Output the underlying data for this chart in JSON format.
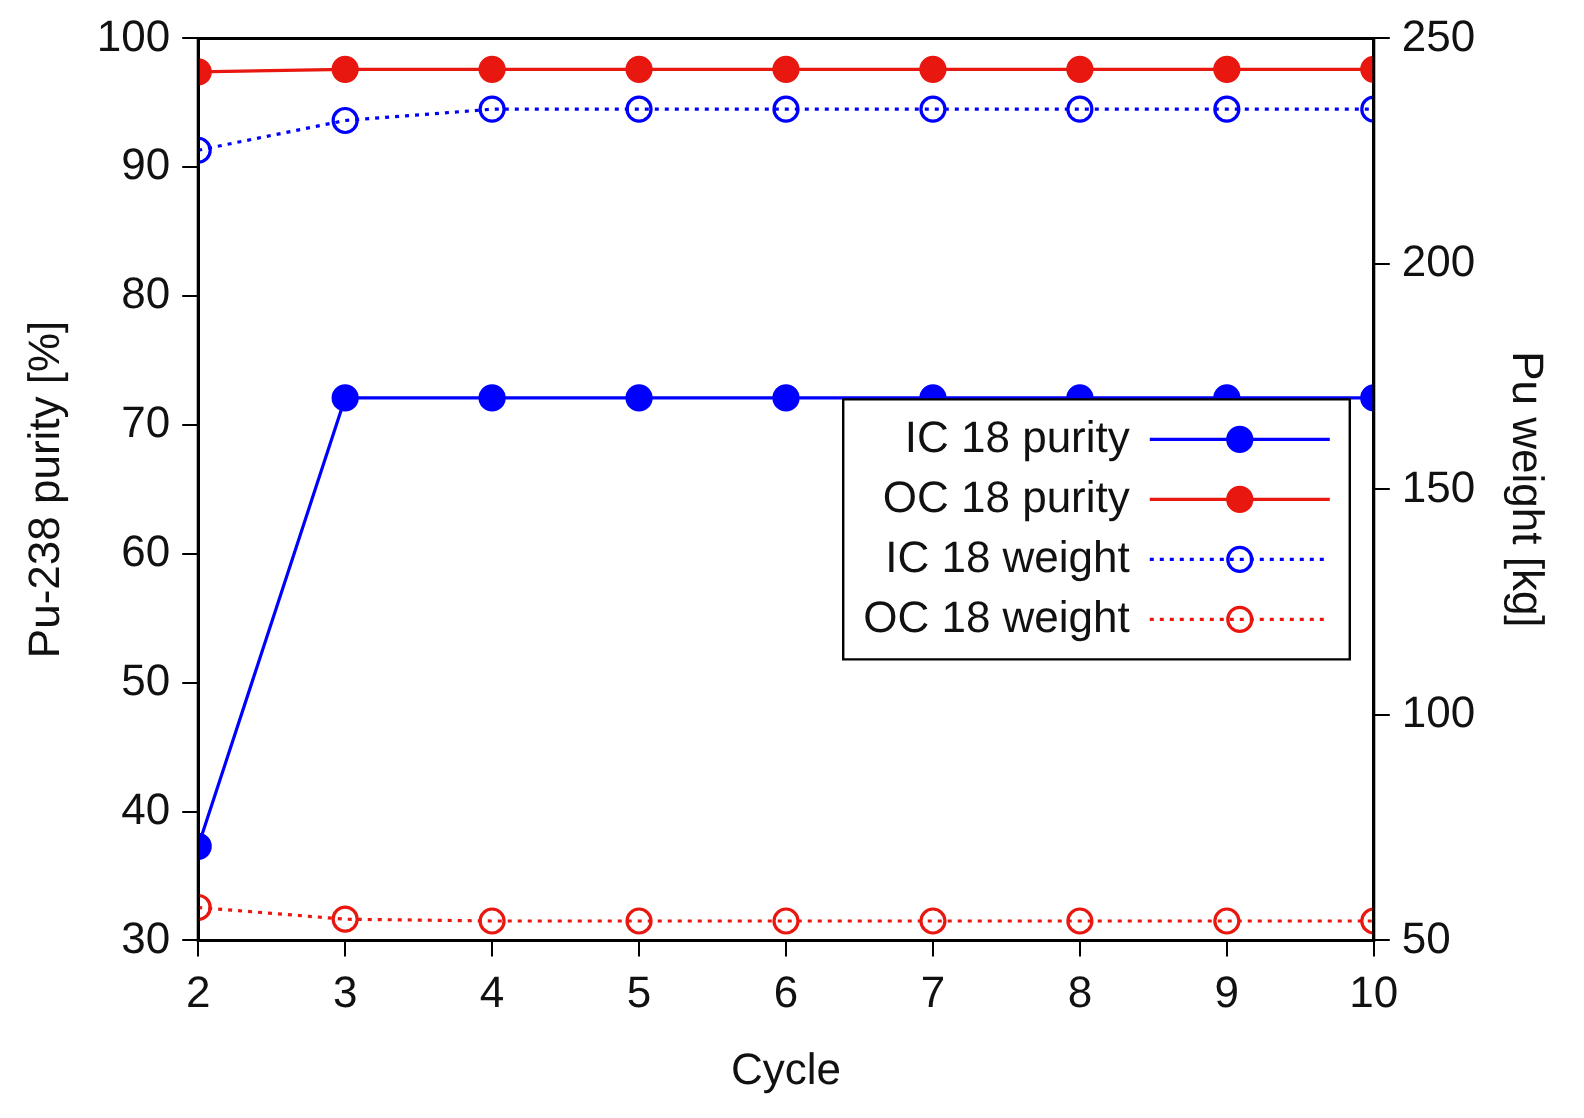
{
  "chart_data": {
    "type": "line",
    "xlabel": "Cycle",
    "ylabel": "Pu-238 purity [%]",
    "y2label": "Pu weight [kg]",
    "x": [
      2,
      3,
      4,
      5,
      6,
      7,
      8,
      9,
      10
    ],
    "xlim": [
      2,
      10
    ],
    "xticks": [
      2,
      3,
      4,
      5,
      6,
      7,
      8,
      9,
      10
    ],
    "ylim": [
      30,
      100
    ],
    "yticks": [
      30,
      40,
      50,
      60,
      70,
      80,
      90,
      100
    ],
    "y2lim": [
      50,
      250
    ],
    "y2ticks": [
      50,
      100,
      150,
      200,
      250
    ],
    "grid": false,
    "legend": "center right",
    "marker": "circle",
    "series": [
      {
        "name": "IC 18 purity",
        "color": "#0000ff",
        "line_style": "solid",
        "values": [
          37.3,
          72.1,
          72.1,
          72.1,
          72.1,
          72.1,
          72.1,
          72.1,
          72.1
        ]
      },
      {
        "name": "OC 18 purity",
        "color": "#e8170f",
        "line_style": "solid",
        "values": [
          97.4,
          97.6,
          97.6,
          97.6,
          97.6,
          97.6,
          97.6,
          97.6,
          97.6
        ]
      },
      {
        "name": "IC 18 weight",
        "color": "#0000ff",
        "line_style": "dotted",
        "axis": "y2",
        "values": [
          225.2,
          231.8,
          234.3,
          234.3,
          234.3,
          234.3,
          234.3,
          234.3,
          234.3
        ]
      },
      {
        "name": "OC 18 weight",
        "color": "#e8170f",
        "line_style": "dotted",
        "axis": "y2",
        "values": [
          57.3,
          54.7,
          54.3,
          54.3,
          54.3,
          54.3,
          54.3,
          54.3,
          54.3
        ]
      }
    ]
  }
}
